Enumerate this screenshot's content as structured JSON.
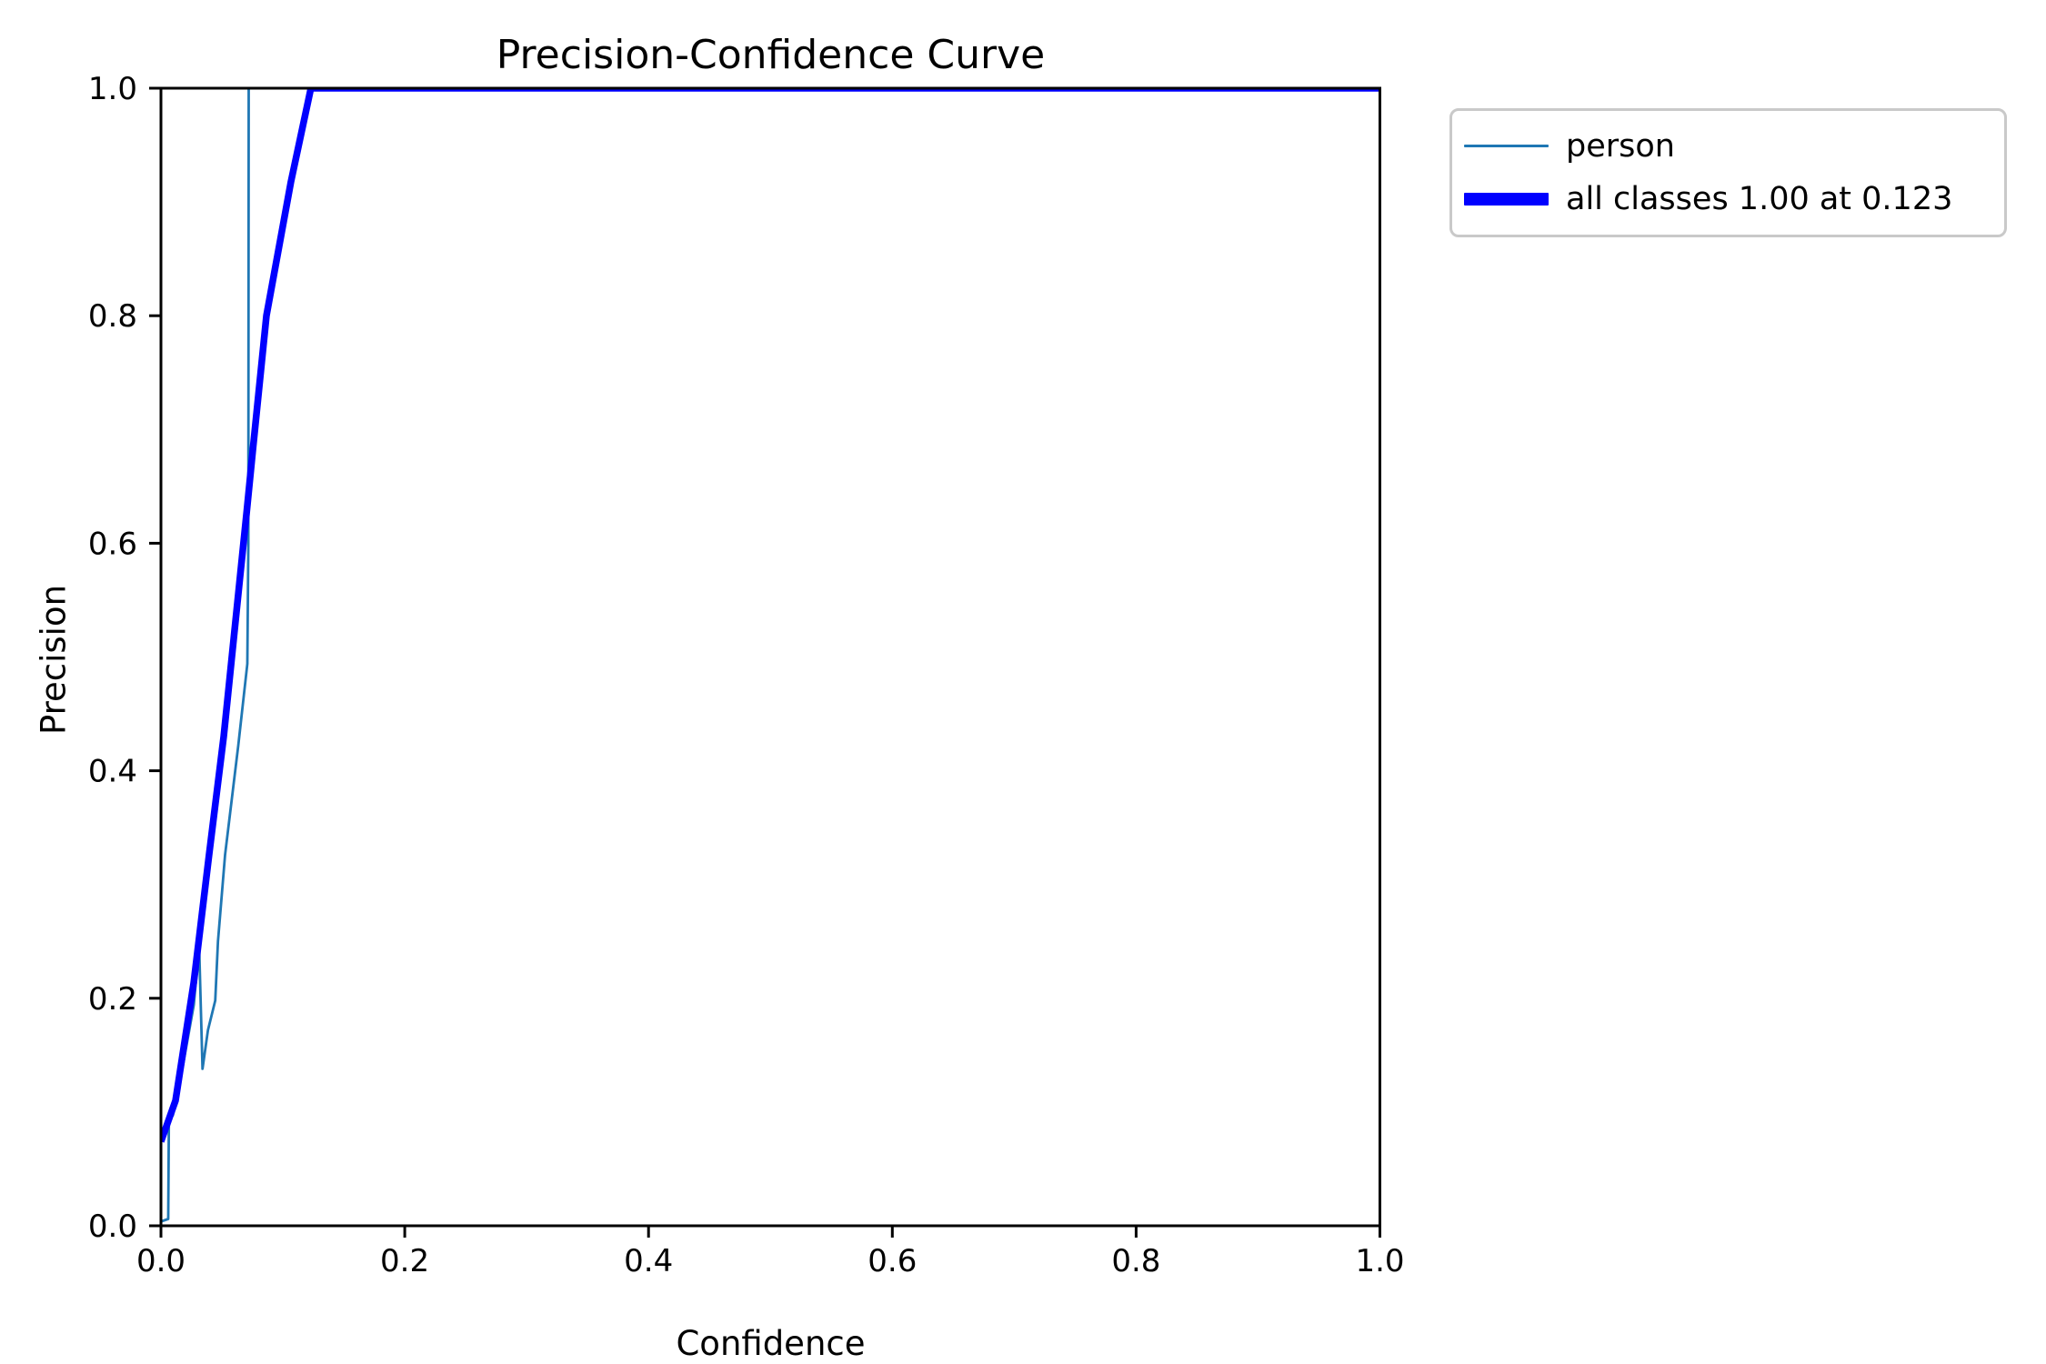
{
  "figure": {
    "title": "Precision-Confidence Curve",
    "xlabel": "Confidence",
    "ylabel": "Precision"
  },
  "legend": {
    "items": [
      {
        "label": "person",
        "color": "#1f77b4",
        "thickness": 3
      },
      {
        "label": "all classes 1.00 at 0.123",
        "color": "#0000ff",
        "thickness": 14
      }
    ]
  },
  "chart_data": {
    "type": "line",
    "title": "Precision-Confidence Curve",
    "xlabel": "Confidence",
    "ylabel": "Precision",
    "xlim": [
      0.0,
      1.0
    ],
    "ylim": [
      0.0,
      1.0
    ],
    "xticks": [
      "0.0",
      "0.2",
      "0.4",
      "0.6",
      "0.8",
      "1.0"
    ],
    "yticks": [
      "0.0",
      "0.2",
      "0.4",
      "0.6",
      "0.8",
      "1.0"
    ],
    "grid": false,
    "legend_position": "outside-upper-right",
    "annotation": "all classes reach precision 1.00 at confidence 0.123",
    "series": [
      {
        "name": "person",
        "color": "#1f77b4",
        "line_width": 2.8,
        "points": [
          [
            0.0007,
            0.004
          ],
          [
            0.006,
            0.006
          ],
          [
            0.0065,
            0.09
          ],
          [
            0.0082,
            0.094
          ],
          [
            0.0086,
            0.097
          ],
          [
            0.0097,
            0.097
          ],
          [
            0.0142,
            0.118
          ],
          [
            0.0209,
            0.158
          ],
          [
            0.0269,
            0.194
          ],
          [
            0.0313,
            0.246
          ],
          [
            0.0341,
            0.138
          ],
          [
            0.0386,
            0.172
          ],
          [
            0.0445,
            0.198
          ],
          [
            0.0468,
            0.25
          ],
          [
            0.0526,
            0.326
          ],
          [
            0.0634,
            0.422
          ],
          [
            0.0709,
            0.494
          ],
          [
            0.0717,
            0.6
          ],
          [
            0.072,
            1.0
          ],
          [
            1.0,
            1.0
          ]
        ]
      },
      {
        "name": "all classes 1.00 at 0.123",
        "color": "#0000ff",
        "line_width": 7.5,
        "points": [
          [
            0.0,
            0.074
          ],
          [
            0.0119,
            0.11
          ],
          [
            0.0269,
            0.214
          ],
          [
            0.0395,
            0.326
          ],
          [
            0.0515,
            0.43
          ],
          [
            0.0706,
            0.63
          ],
          [
            0.0756,
            0.684
          ],
          [
            0.0865,
            0.8
          ],
          [
            0.1067,
            0.918
          ],
          [
            0.123,
            1.0
          ],
          [
            1.0,
            1.0
          ]
        ]
      }
    ]
  }
}
